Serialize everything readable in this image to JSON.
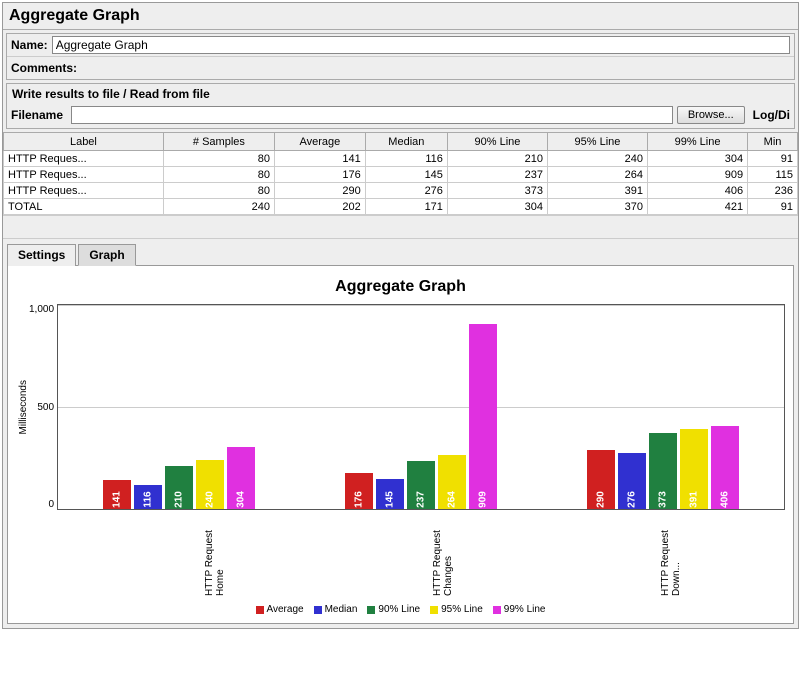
{
  "title": "Aggregate Graph",
  "name_label": "Name:",
  "name_value": "Aggregate Graph",
  "comments_label": "Comments:",
  "file_section_title": "Write results to file / Read from file",
  "filename_label": "Filename",
  "browse_label": "Browse...",
  "logdi_label": "Log/Di",
  "table": {
    "columns": [
      "Label",
      "# Samples",
      "Average",
      "Median",
      "90% Line",
      "95% Line",
      "99% Line",
      "Min"
    ],
    "rows": [
      [
        "HTTP Reques...",
        "80",
        "141",
        "116",
        "210",
        "240",
        "304",
        "91"
      ],
      [
        "HTTP Reques...",
        "80",
        "176",
        "145",
        "237",
        "264",
        "909",
        "115"
      ],
      [
        "HTTP Reques...",
        "80",
        "290",
        "276",
        "373",
        "391",
        "406",
        "236"
      ],
      [
        "TOTAL",
        "240",
        "202",
        "171",
        "304",
        "370",
        "421",
        "91"
      ]
    ]
  },
  "tabs": {
    "settings": "Settings",
    "graph": "Graph"
  },
  "chart": {
    "title": "Aggregate Graph",
    "ylabel": "Milliseconds",
    "ymax": 1000,
    "yticks": [
      "1,000",
      "500",
      "0"
    ],
    "grid_positions_pct": [
      0,
      50
    ],
    "colors": {
      "average": "#d02020",
      "median": "#3030d0",
      "p90": "#208040",
      "p95": "#f0e000",
      "p99": "#e030e0"
    },
    "categories": [
      "HTTP Request Home",
      "HTTP Request Changes",
      "HTTP Request Down..."
    ],
    "series": [
      {
        "name": "Average",
        "color_key": "average",
        "values": [
          141,
          176,
          290
        ]
      },
      {
        "name": "Median",
        "color_key": "median",
        "values": [
          116,
          145,
          276
        ]
      },
      {
        "name": "90% Line",
        "color_key": "p90",
        "values": [
          210,
          237,
          373
        ]
      },
      {
        "name": "95% Line",
        "color_key": "p95",
        "values": [
          240,
          264,
          391
        ]
      },
      {
        "name": "99% Line",
        "color_key": "p99",
        "values": [
          304,
          909,
          406
        ]
      }
    ],
    "legend": [
      "Average",
      "Median",
      "90% Line",
      "95% Line",
      "99% Line"
    ]
  }
}
